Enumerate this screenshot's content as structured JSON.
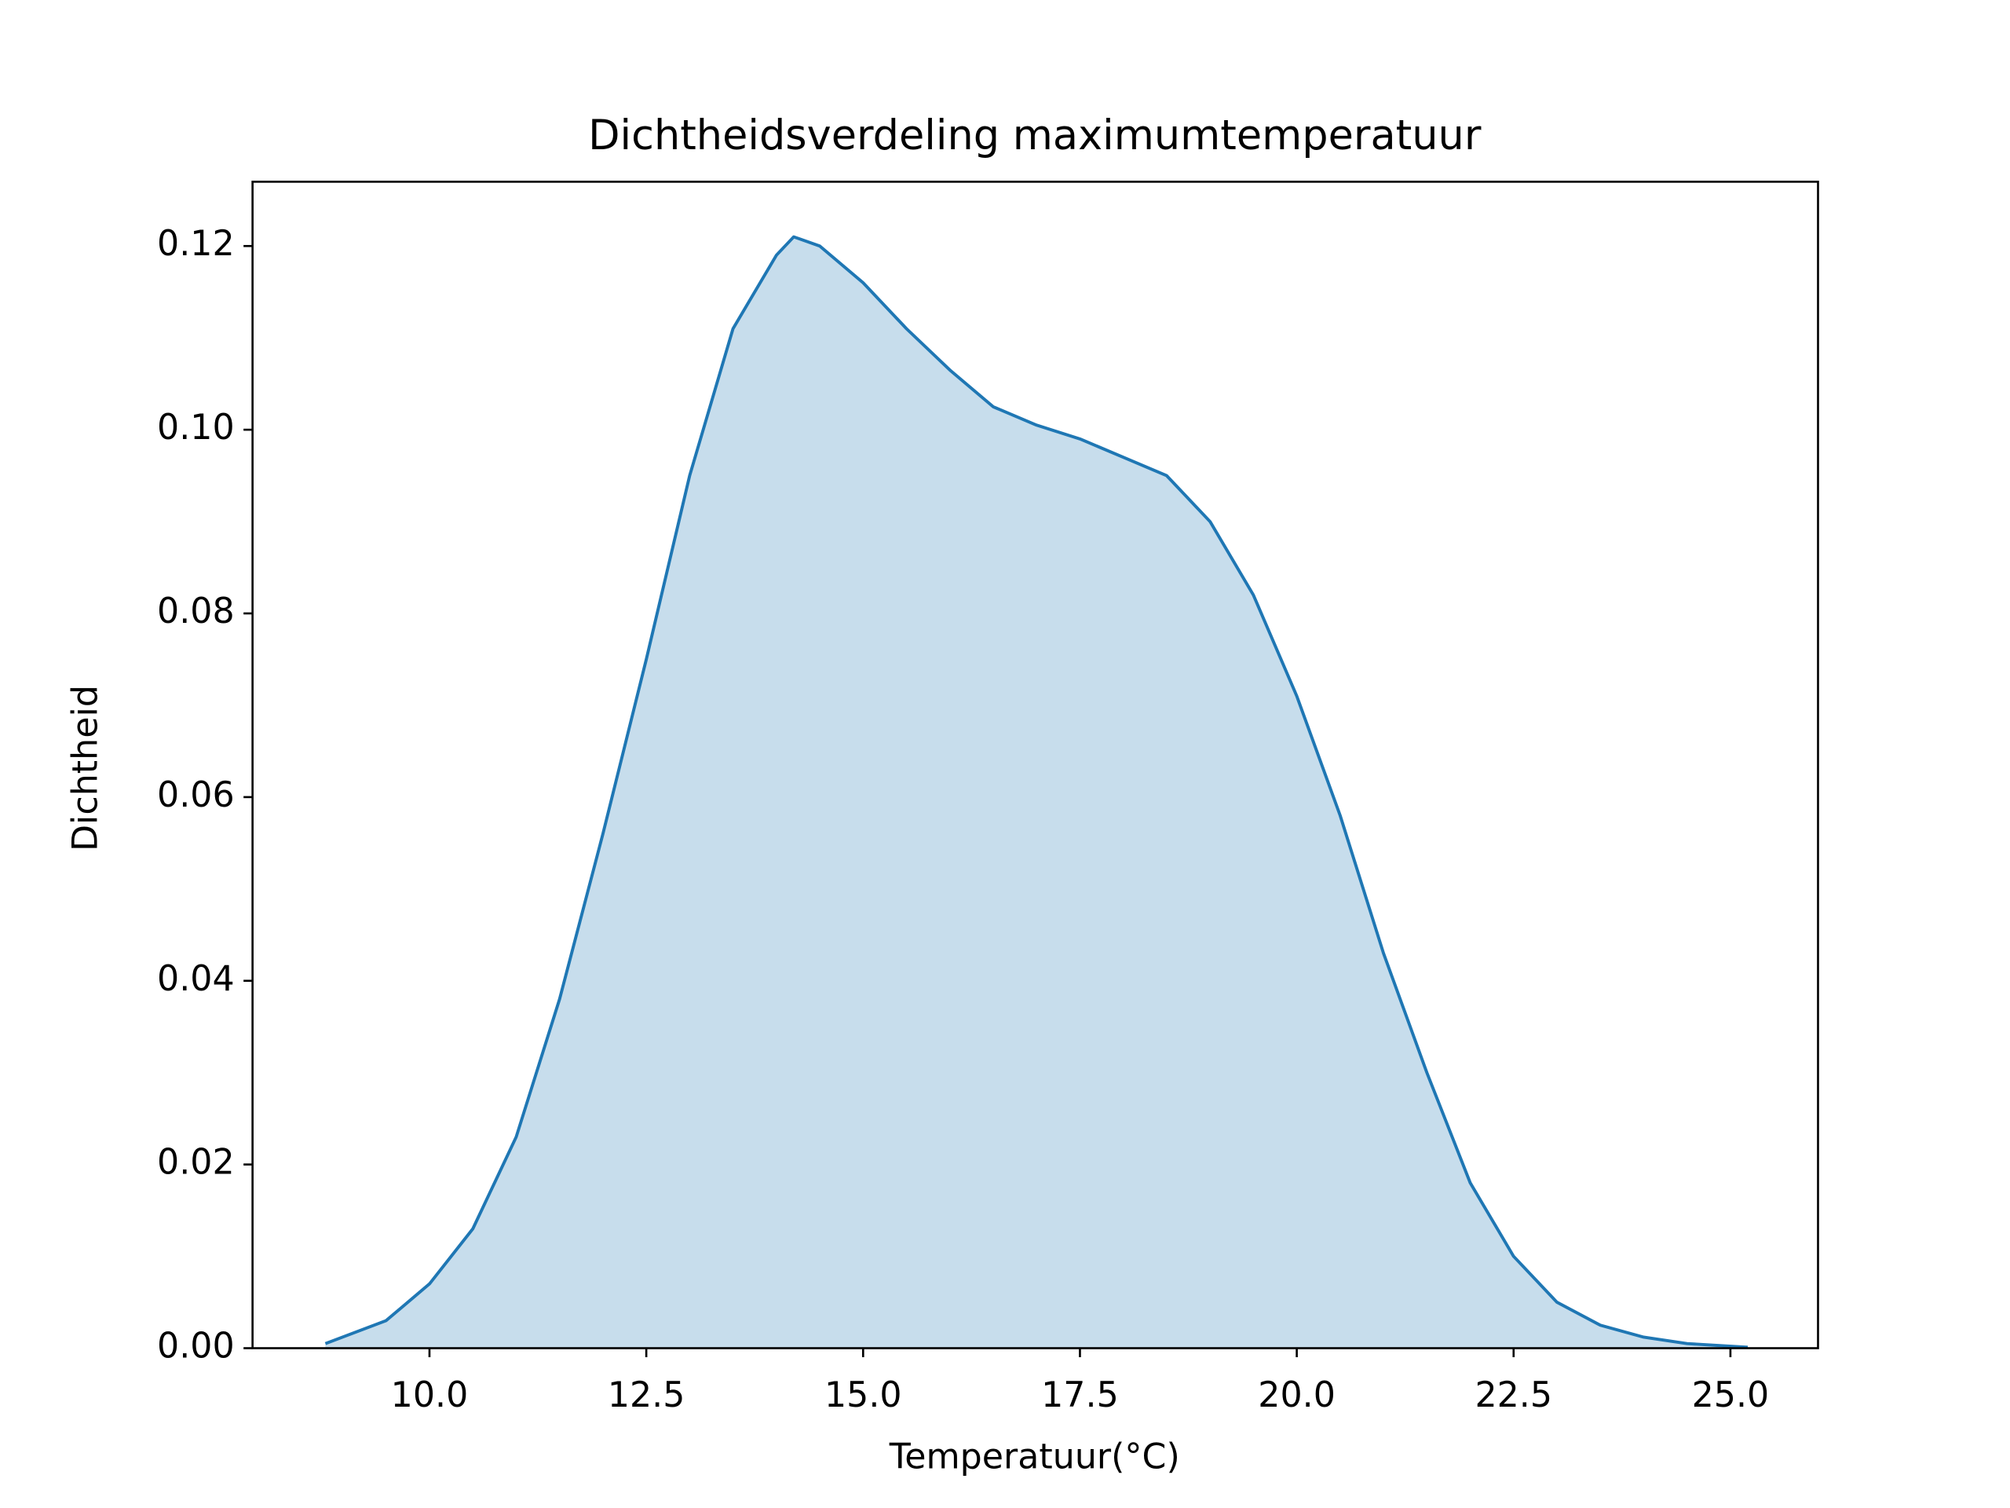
{
  "chart_data": {
    "type": "area",
    "title": "Dichtheidsverdeling maximumtemperatuur",
    "xlabel": "Temperatuur(°C)",
    "ylabel": "Dichtheid",
    "x": [
      8.8,
      9.5,
      10,
      10.5,
      11,
      11.5,
      12,
      12.5,
      13,
      13.5,
      14,
      14.2,
      14.5,
      15,
      15.5,
      16,
      16.5,
      17,
      17.5,
      18,
      18.5,
      19,
      19.5,
      20,
      20.5,
      21,
      21.5,
      22,
      22.5,
      23,
      23.5,
      24,
      24.5,
      25.2
    ],
    "series": [
      {
        "color": "#1f77b4",
        "values": [
          0.0005,
          0.003,
          0.007,
          0.013,
          0.023,
          0.038,
          0.056,
          0.075,
          0.095,
          0.111,
          0.119,
          0.121,
          0.12,
          0.116,
          0.111,
          0.1065,
          0.1025,
          0.1005,
          0.099,
          0.097,
          0.095,
          0.09,
          0.082,
          0.071,
          0.058,
          0.043,
          0.03,
          0.018,
          0.01,
          0.005,
          0.0025,
          0.0012,
          0.0005,
          0.0001
        ]
      }
    ],
    "xlim": [
      7.96,
      26.01
    ],
    "ylim": [
      0,
      0.127
    ],
    "xticks": [
      {
        "value": 10,
        "label": "10.0"
      },
      {
        "value": 12.5,
        "label": "12.5"
      },
      {
        "value": 15,
        "label": "15.0"
      },
      {
        "value": 17.5,
        "label": "17.5"
      },
      {
        "value": 20,
        "label": "20.0"
      },
      {
        "value": 22.5,
        "label": "22.5"
      },
      {
        "value": 25,
        "label": "25.0"
      }
    ],
    "yticks": [
      {
        "value": 0,
        "label": "0.00"
      },
      {
        "value": 0.02,
        "label": "0.02"
      },
      {
        "value": 0.04,
        "label": "0.04"
      },
      {
        "value": 0.06,
        "label": "0.06"
      },
      {
        "value": 0.08,
        "label": "0.08"
      },
      {
        "value": 0.1,
        "label": "0.10"
      },
      {
        "value": 0.12,
        "label": "0.12"
      }
    ]
  }
}
